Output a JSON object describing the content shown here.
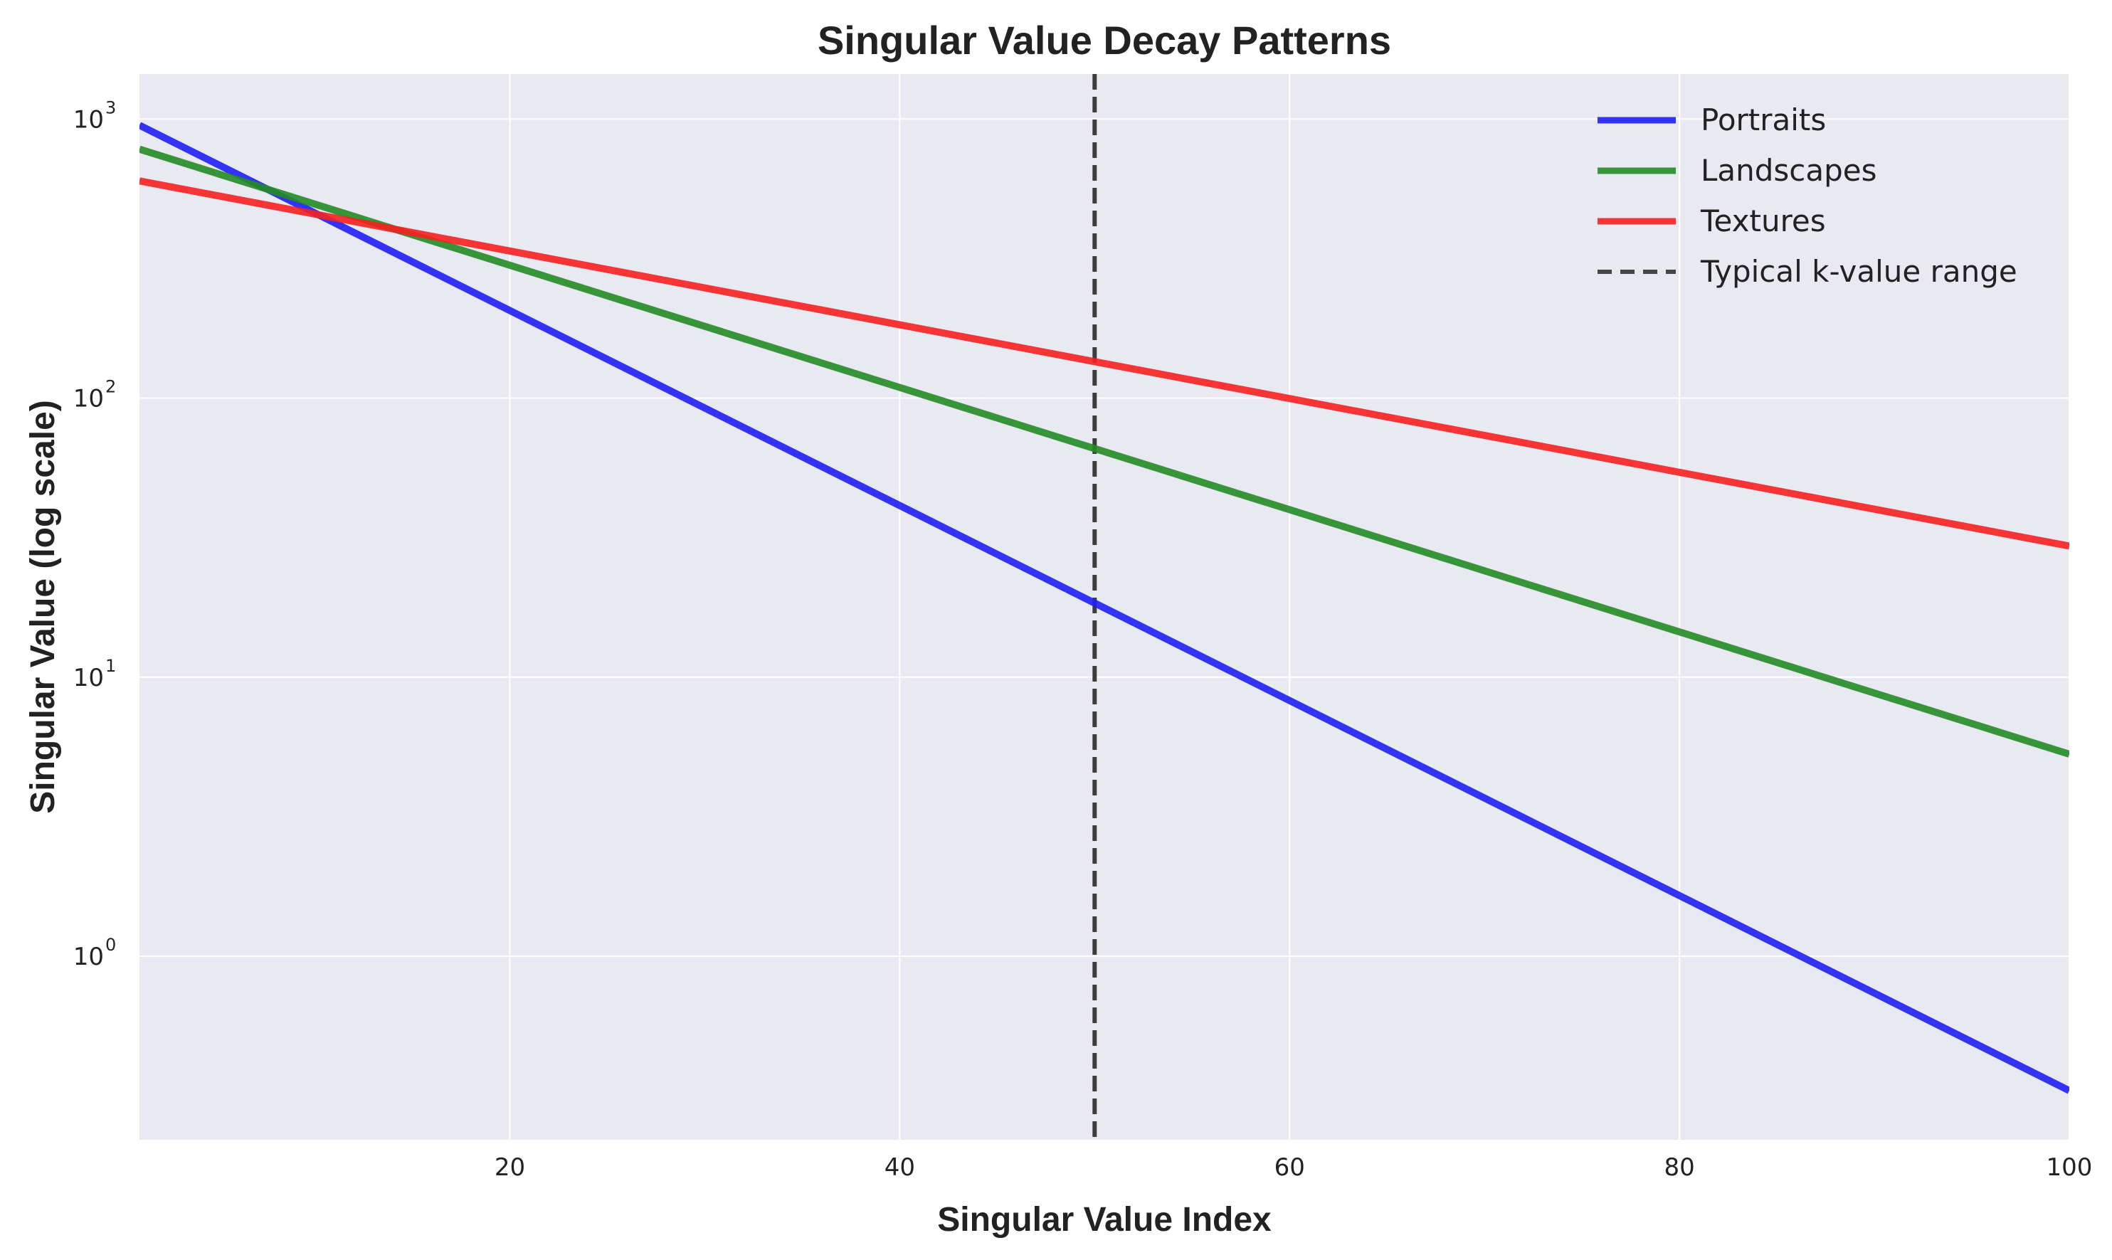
{
  "chart_data": {
    "type": "line",
    "title": "Singular Value Decay Patterns",
    "xlabel": "Singular Value Index",
    "ylabel": "Singular Value (log scale)",
    "xlim": [
      1,
      100
    ],
    "ylim": [
      0.22,
      1450
    ],
    "yscale": "log",
    "grid": true,
    "legend_position": "top-right",
    "background": "#e9e9f2",
    "x_ticks": [
      20,
      40,
      60,
      80,
      100
    ],
    "x_tick_labels": [
      "20",
      "40",
      "60",
      "80",
      "100"
    ],
    "y_ticks": [
      1,
      10,
      100,
      1000
    ],
    "y_tick_labels": [
      {
        "base": "10",
        "exp": "0"
      },
      {
        "base": "10",
        "exp": "1"
      },
      {
        "base": "10",
        "exp": "2"
      },
      {
        "base": "10",
        "exp": "3"
      }
    ],
    "series": [
      {
        "name": "Portraits",
        "color": "#1f1ff5",
        "style": "solid",
        "x": [
          1,
          100
        ],
        "y": [
          950,
          0.33
        ]
      },
      {
        "name": "Landscapes",
        "color": "#238b23",
        "style": "solid",
        "x": [
          1,
          100
        ],
        "y": [
          780,
          5.3
        ]
      },
      {
        "name": "Textures",
        "color": "#f52020",
        "style": "solid",
        "x": [
          1,
          100
        ],
        "y": [
          600,
          29.5
        ]
      }
    ],
    "vline": {
      "name": "Typical k-value range",
      "x": 50,
      "color": "#333333",
      "style": "dashed"
    }
  }
}
